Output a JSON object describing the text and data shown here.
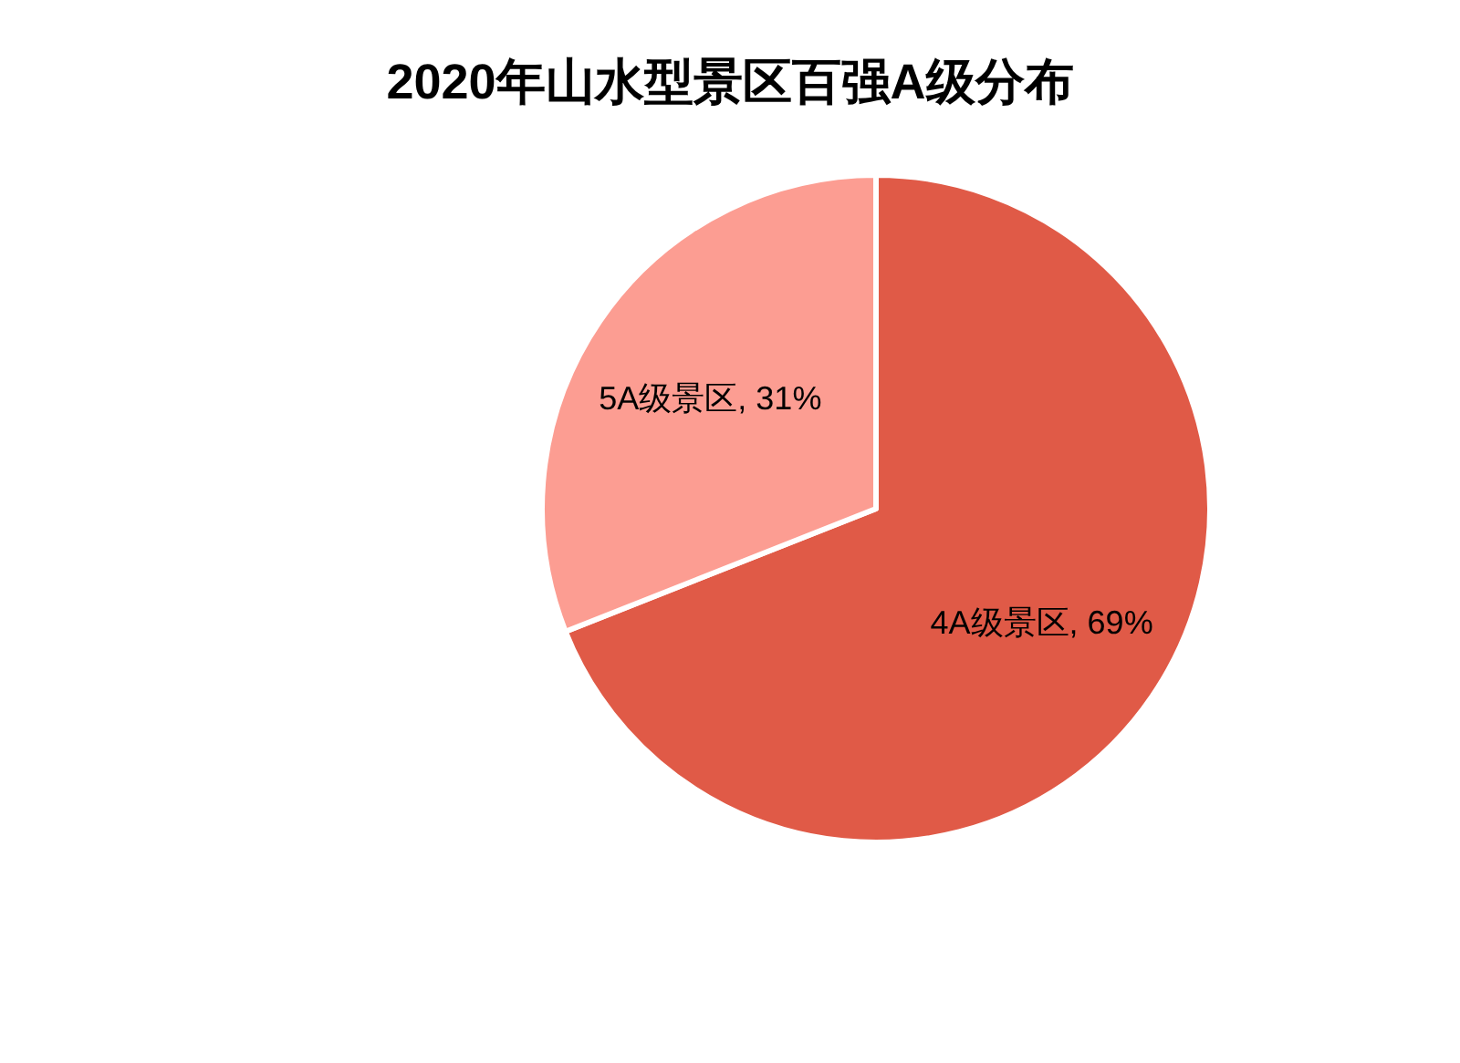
{
  "chart_data": {
    "type": "pie",
    "title": "2020年山水型景区百强A级分布",
    "categories": [
      "4A级景区",
      "5A级景区"
    ],
    "values": [
      69,
      31
    ],
    "colors": [
      "#e05a47",
      "#fc9d92"
    ],
    "value_labels": [
      "69%",
      "31%"
    ],
    "legend": false
  }
}
